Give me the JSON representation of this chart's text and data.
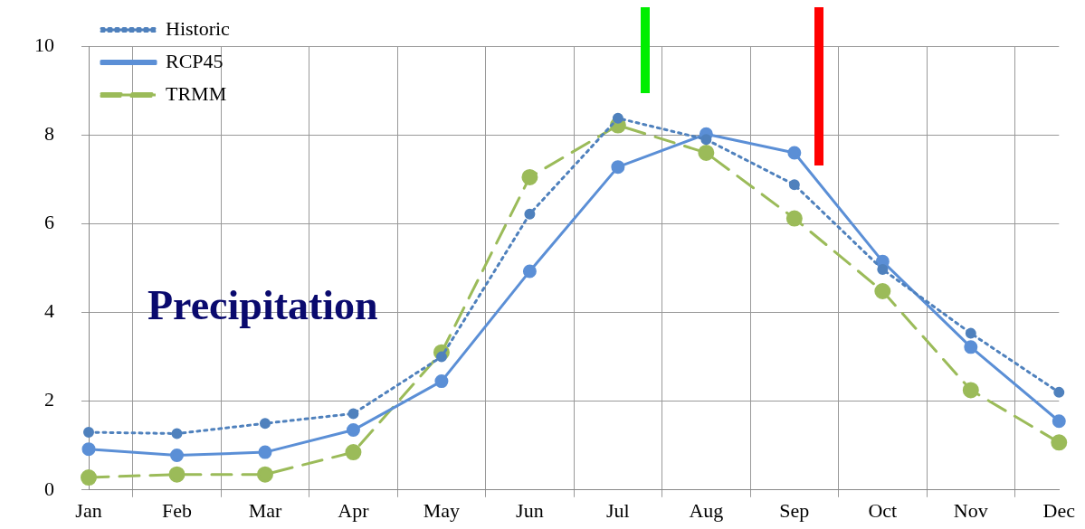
{
  "chart_data": {
    "type": "line",
    "annotations": [
      "Precipitation"
    ],
    "categories": [
      "Jan",
      "Feb",
      "Mar",
      "Apr",
      "May",
      "Jun",
      "Jul",
      "Aug",
      "Sep",
      "Oct",
      "Nov",
      "Dec"
    ],
    "series": [
      {
        "name": "Historic",
        "color": "#4f81bd",
        "line_style": "dotted",
        "values": [
          1.3,
          1.27,
          1.5,
          1.72,
          3.0,
          6.22,
          8.38,
          7.9,
          6.88,
          4.97,
          3.53,
          2.2
        ]
      },
      {
        "name": "RCP45",
        "color": "#5b8fd6",
        "line_style": "solid",
        "values": [
          0.92,
          0.78,
          0.85,
          1.35,
          2.45,
          4.93,
          7.28,
          8.02,
          7.6,
          5.15,
          3.22,
          1.55
        ]
      },
      {
        "name": "TRMM",
        "color": "#9bbb59",
        "line_style": "dashed",
        "values": [
          0.28,
          0.35,
          0.35,
          0.85,
          3.1,
          7.05,
          8.22,
          7.6,
          6.12,
          4.48,
          2.25,
          1.07
        ]
      }
    ],
    "ylim": [
      0,
      10
    ],
    "yticks": [
      0,
      2,
      4,
      6,
      8,
      10
    ],
    "grid": true,
    "legend": "top left",
    "marker": "circle"
  }
}
